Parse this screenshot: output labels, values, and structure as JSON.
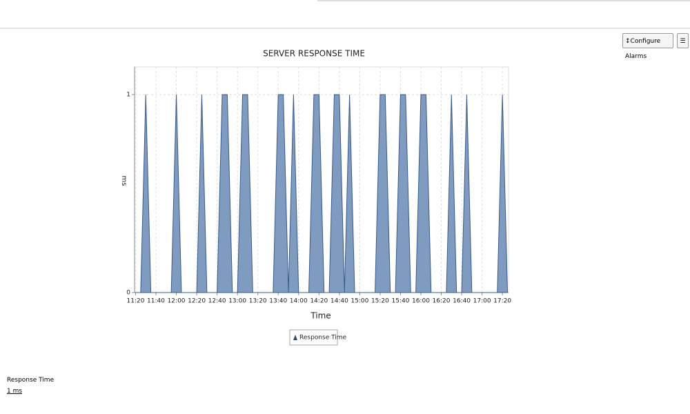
{
  "toolbar": {
    "configure_button": "Configure Alarms"
  },
  "chart_data": {
    "type": "area",
    "title": "SERVER RESPONSE TIME",
    "x_label": "Time",
    "y_label": "ms",
    "x": [
      "11:20",
      "11:25",
      "11:30",
      "11:35",
      "11:55",
      "12:00",
      "12:05",
      "12:20",
      "12:25",
      "12:30",
      "12:40",
      "12:45",
      "12:50",
      "12:55",
      "13:00",
      "13:05",
      "13:10",
      "13:15",
      "13:35",
      "13:40",
      "13:45",
      "13:50",
      "13:55",
      "14:00",
      "14:10",
      "14:15",
      "14:20",
      "14:25",
      "14:30",
      "14:35",
      "14:40",
      "14:45",
      "14:50",
      "14:55",
      "15:15",
      "15:20",
      "15:25",
      "15:30",
      "15:35",
      "15:40",
      "15:45",
      "15:50",
      "15:55",
      "16:00",
      "16:05",
      "16:10",
      "16:25",
      "16:30",
      "16:35",
      "16:40",
      "16:45",
      "16:50",
      "17:15",
      "17:20",
      "17:25"
    ],
    "series": [
      {
        "name": "Response Time",
        "color": "#7f9bbf",
        "values": [
          0,
          0,
          1,
          0,
          0,
          1,
          0,
          0,
          1,
          0,
          0,
          1,
          1,
          0,
          0,
          1,
          1,
          0,
          0,
          1,
          1,
          0,
          1,
          0,
          0,
          1,
          1,
          0,
          0,
          1,
          1,
          0,
          1,
          0,
          0,
          1,
          1,
          0,
          0,
          1,
          1,
          0,
          0,
          1,
          1,
          0,
          0,
          1,
          0,
          0,
          1,
          0,
          0,
          1,
          0
        ]
      }
    ],
    "xlim": [
      "11:19",
      "17:26"
    ],
    "xticks": [
      "11:20",
      "11:40",
      "12:00",
      "12:20",
      "12:40",
      "13:00",
      "13:20",
      "13:40",
      "14:00",
      "14:20",
      "14:40",
      "15:00",
      "15:20",
      "15:40",
      "16:00",
      "16:20",
      "16:40",
      "17:00",
      "17:20"
    ],
    "ylim": [
      0,
      1.14
    ],
    "yticks": [
      0,
      1
    ],
    "grid": true
  },
  "summary": {
    "label": "Response Time",
    "value": "1 ms"
  }
}
